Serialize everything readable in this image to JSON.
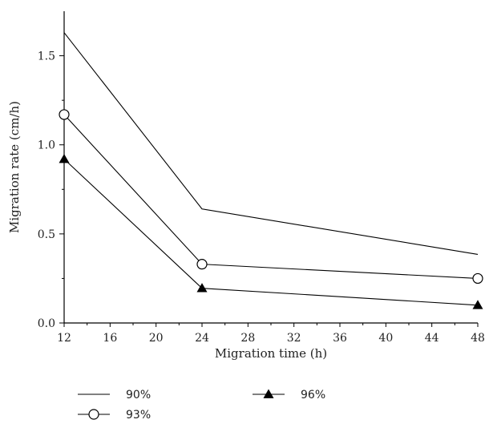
{
  "chart_data": {
    "type": "line",
    "xlabel": "Migration time (h)",
    "ylabel": "Migration rate (cm/h)",
    "xlim": [
      12,
      48
    ],
    "ylim": [
      0,
      1.75
    ],
    "xticks": [
      12,
      16,
      20,
      24,
      28,
      32,
      36,
      40,
      44,
      48
    ],
    "yticks": [
      0,
      0.5,
      1.0,
      1.5
    ],
    "ytick_labels": [
      "0.0",
      "0.5",
      "1.0",
      "1.5"
    ],
    "grid": false,
    "legend_position": "bottom",
    "x": [
      12,
      24,
      48
    ],
    "series": [
      {
        "name": "90%",
        "marker": "none",
        "values": [
          1.63,
          0.64,
          0.385
        ]
      },
      {
        "name": "93%",
        "marker": "open-circle",
        "values": [
          1.17,
          0.33,
          0.25
        ]
      },
      {
        "name": "96%",
        "marker": "filled-triangle",
        "values": [
          0.92,
          0.195,
          0.1
        ]
      }
    ]
  }
}
